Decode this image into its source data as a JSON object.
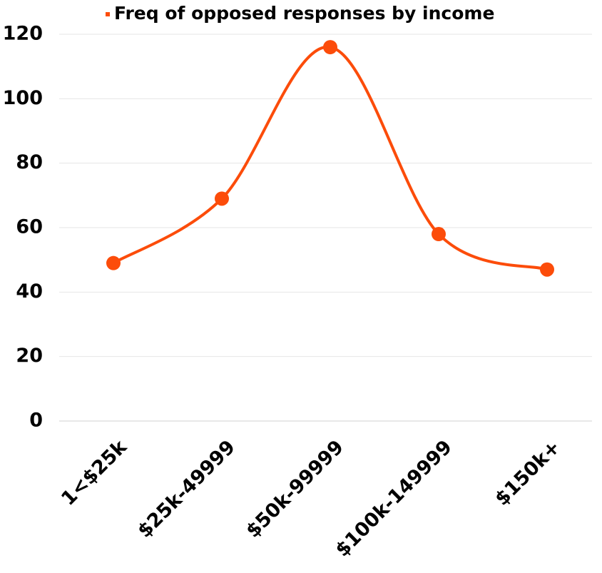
{
  "chart_data": {
    "type": "line",
    "smooth": true,
    "categories": [
      "1<$25k",
      "$25k-49999",
      "$50k-99999",
      "$100k-149999",
      "$150k+"
    ],
    "series": [
      {
        "name": "Freq of opposed responses by income",
        "color": "#fc4c0a",
        "values": [
          49,
          69,
          116,
          58,
          47
        ]
      }
    ],
    "ylim": [
      0,
      120
    ],
    "yticks": [
      0,
      20,
      40,
      60,
      80,
      100,
      120
    ],
    "grid": true,
    "legend": "top"
  }
}
